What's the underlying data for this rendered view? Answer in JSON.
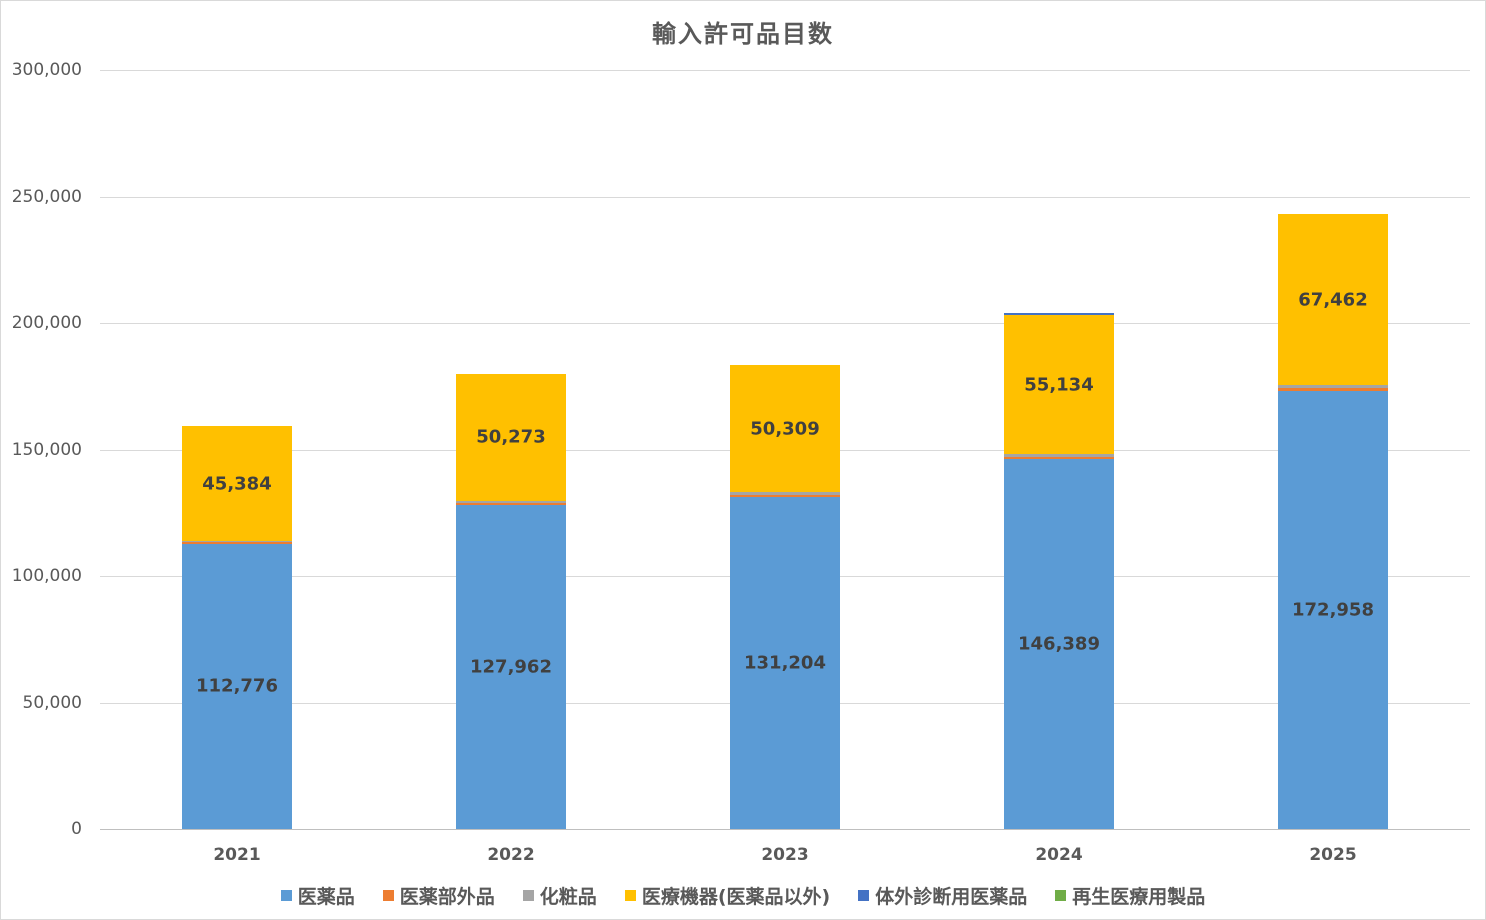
{
  "chart_data": {
    "type": "bar",
    "stacked": true,
    "title": "輸入許可品目数",
    "xlabel": "",
    "ylabel": "",
    "categories": [
      "2021",
      "2022",
      "2023",
      "2024",
      "2025"
    ],
    "ylim": [
      0,
      300000
    ],
    "yticks": [
      "0",
      "50,000",
      "100,000",
      "150,000",
      "200,000",
      "250,000",
      "300,000"
    ],
    "grid": true,
    "legend_position": "bottom",
    "series": [
      {
        "name": "医薬品",
        "color": "#5b9bd5",
        "values": [
          112776,
          127962,
          131204,
          146389,
          172958
        ],
        "labels": [
          "112,776",
          "127,962",
          "131,204",
          "146,389",
          "172,958"
        ]
      },
      {
        "name": "医薬部外品",
        "color": "#ed7d31",
        "values": [
          600,
          800,
          900,
          700,
          1200
        ],
        "labels": []
      },
      {
        "name": "化粧品",
        "color": "#a5a5a5",
        "values": [
          500,
          1000,
          1000,
          1000,
          1300
        ],
        "labels": []
      },
      {
        "name": "医療機器(医薬品以外)",
        "color": "#ffc000",
        "values": [
          45384,
          50273,
          50309,
          55134,
          67462
        ],
        "labels": [
          "45,384",
          "50,273",
          "50,309",
          "55,134",
          "67,462"
        ]
      },
      {
        "name": "体外診断用医薬品",
        "color": "#4472c4",
        "values": [
          0,
          0,
          0,
          800,
          0
        ],
        "labels": []
      },
      {
        "name": "再生医療用製品",
        "color": "#70ad47",
        "values": [
          0,
          0,
          0,
          0,
          0
        ],
        "labels": []
      }
    ]
  }
}
